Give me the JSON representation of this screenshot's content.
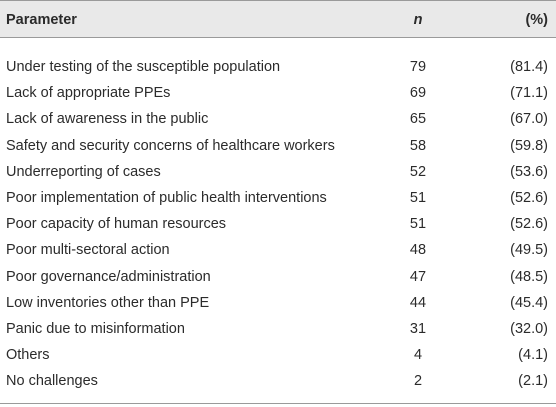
{
  "table": {
    "header": [
      "Parameter",
      "n",
      "(%)"
    ],
    "rows": [
      [
        "Under testing of the susceptible population",
        79,
        "(81.4)"
      ],
      [
        "Lack of appropriate PPEs",
        69,
        "(71.1)"
      ],
      [
        "Lack of awareness in the public",
        65,
        "(67.0)"
      ],
      [
        "Safety and security concerns of healthcare workers",
        58,
        "(59.8)"
      ],
      [
        "Underreporting of cases",
        52,
        "(53.6)"
      ],
      [
        "Poor implementation of public health interventions",
        51,
        "(52.6)"
      ],
      [
        "Poor capacity of human resources",
        51,
        "(52.6)"
      ],
      [
        "Poor multi-sectoral action",
        48,
        "(49.5)"
      ],
      [
        "Poor governance/administration",
        47,
        "(48.5)"
      ],
      [
        "Low inventories other than PPE",
        44,
        "(45.4)"
      ],
      [
        "Panic due to misinformation",
        31,
        "(32.0)"
      ],
      [
        "Others",
        4,
        "(4.1)"
      ],
      [
        "No challenges",
        2,
        "(2.1)"
      ]
    ]
  }
}
